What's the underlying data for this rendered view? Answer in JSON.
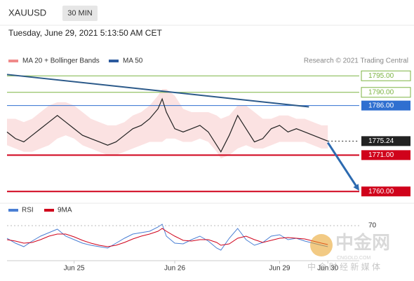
{
  "chart_data": {
    "type": "line",
    "symbol": "XAUUSD",
    "timeframe": "30 MIN",
    "title": "Tuesday, June 29, 2021 5:13:50 AM CET",
    "source": "Research © 2021 Trading Central",
    "watermark": [
      "中金网",
      "CNGOLD.COM",
      "中 金 财 经 新 媒 体"
    ],
    "xlim": [
      0,
      168
    ],
    "xticks": [
      {
        "value": 32,
        "label": "Jun 25"
      },
      {
        "value": 80,
        "label": "Jun 26"
      },
      {
        "value": 130,
        "label": "Jun 29"
      },
      {
        "value": 153,
        "label": "Jun 30"
      }
    ],
    "ylim": [
      1757.5,
      1797.8
    ],
    "x": [
      0,
      4,
      8,
      12,
      16,
      20,
      24,
      28,
      32,
      36,
      40,
      44,
      48,
      52,
      56,
      60,
      64,
      68,
      72,
      74,
      76,
      80,
      84,
      88,
      92,
      96,
      100,
      102,
      106,
      110,
      114,
      118,
      122,
      126,
      130,
      134,
      138,
      142,
      146,
      150,
      153
    ],
    "series": [
      {
        "name": "MA 20 + Bollinger Bands",
        "color": "#f08a8a",
        "upper": [
          1782,
          1782,
          1781,
          1782,
          1784,
          1786,
          1787,
          1787,
          1786,
          1784,
          1782,
          1781,
          1780,
          1780,
          1781,
          1783,
          1784,
          1786,
          1789,
          1791,
          1791,
          1789,
          1785,
          1784,
          1784,
          1784,
          1783,
          1782,
          1783,
          1786,
          1786,
          1784,
          1782,
          1782,
          1783,
          1783,
          1782,
          1782,
          1781,
          1780,
          1780
        ],
        "lower": [
          1774,
          1773,
          1772,
          1772,
          1773,
          1774,
          1776,
          1777,
          1776,
          1774,
          1773,
          1772,
          1771,
          1771,
          1772,
          1773,
          1774,
          1775,
          1775,
          1775,
          1776,
          1776,
          1775,
          1775,
          1776,
          1775,
          1772,
          1770,
          1771,
          1773,
          1774,
          1773,
          1773,
          1774,
          1775,
          1775,
          1775,
          1775,
          1774,
          1773,
          1773
        ]
      },
      {
        "name": "MA 50",
        "color": "#2c5a9e"
      }
    ],
    "price": {
      "color": "#222222",
      "values": [
        1778,
        1776,
        1775,
        1777,
        1779,
        1781,
        1783,
        1781,
        1779,
        1777,
        1776,
        1775,
        1774,
        1775,
        1777,
        1779,
        1780,
        1782,
        1785,
        1788,
        1784,
        1779,
        1778,
        1779,
        1780,
        1778,
        1774,
        1772,
        1777,
        1783,
        1779,
        1775,
        1776,
        1779,
        1780,
        1778,
        1779,
        1778,
        1777,
        1776,
        1775.24
      ]
    },
    "levels": [
      {
        "value": 1795,
        "label": "1795.00",
        "color": "#7cb342",
        "label_style": "outline"
      },
      {
        "value": 1790,
        "label": "1790.00",
        "color": "#7cb342",
        "label_style": "outline"
      },
      {
        "value": 1786,
        "label": "1786.00",
        "color": "#2f6fd0",
        "label_style": "filled"
      },
      {
        "value": 1775.24,
        "label": "1775.24",
        "color": "#222222",
        "label_style": "filled",
        "dotted": true
      },
      {
        "value": 1771,
        "label": "1771.00",
        "color": "#d0021b",
        "label_style": "filled"
      },
      {
        "value": 1760,
        "label": "1760.00",
        "color": "#d0021b",
        "label_style": "filled"
      }
    ],
    "trendline": {
      "color": "#2c5a8a",
      "x": [
        0,
        144
      ],
      "y": [
        1795.4,
        1785.6
      ]
    },
    "arrow": {
      "color": "#2c6ab0",
      "x": [
        153,
        168
      ],
      "y": [
        1774.8,
        1760.2
      ]
    },
    "rsi": {
      "ylim": [
        20,
        100
      ],
      "yticks": [
        70
      ],
      "series": [
        {
          "name": "RSI",
          "color": "#4a7fd4",
          "values": [
            52,
            45,
            40,
            48,
            55,
            60,
            65,
            55,
            50,
            45,
            42,
            40,
            38,
            45,
            52,
            58,
            60,
            62,
            68,
            72,
            55,
            45,
            44,
            50,
            55,
            48,
            38,
            35,
            52,
            66,
            50,
            42,
            46,
            55,
            57,
            50,
            52,
            48,
            45,
            42,
            40
          ]
        },
        {
          "name": "9MA",
          "color": "#d0021b",
          "values": [
            50,
            48,
            45,
            46,
            50,
            55,
            58,
            58,
            54,
            49,
            45,
            42,
            40,
            42,
            46,
            51,
            55,
            58,
            62,
            66,
            62,
            55,
            49,
            48,
            50,
            50,
            46,
            42,
            44,
            52,
            55,
            50,
            46,
            49,
            52,
            53,
            52,
            51,
            48,
            45,
            43
          ]
        }
      ]
    }
  }
}
